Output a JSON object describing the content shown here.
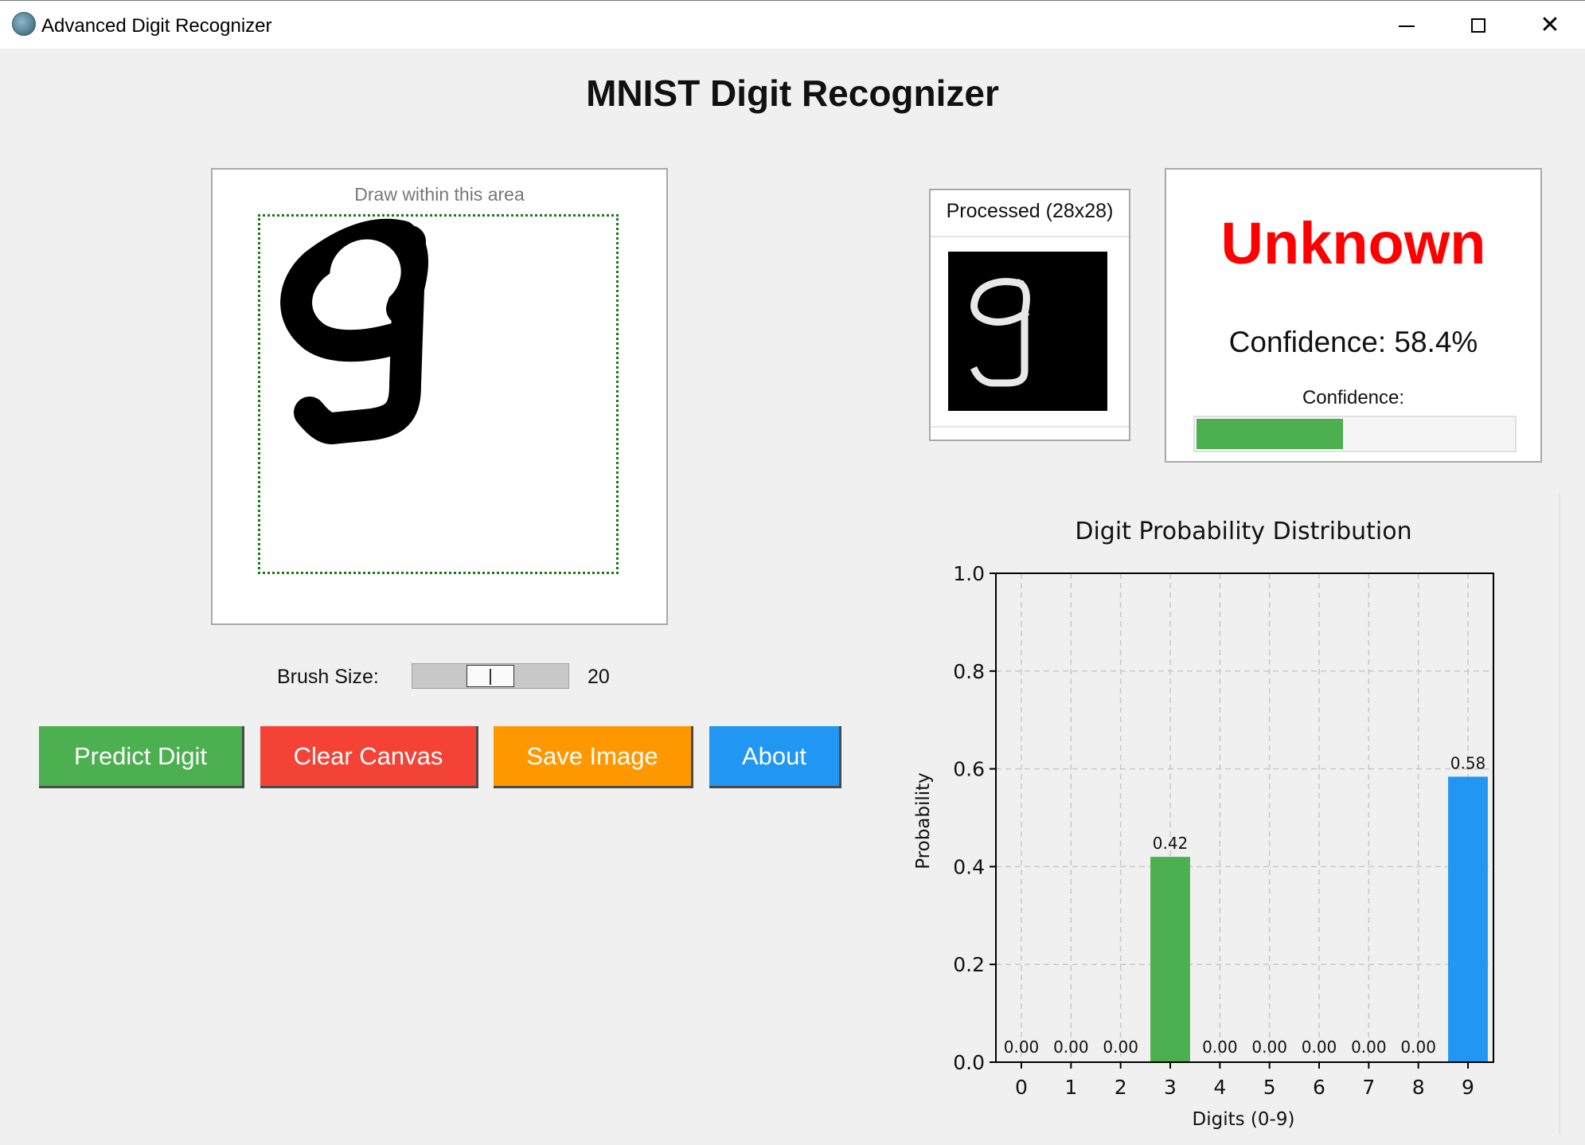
{
  "window": {
    "title": "Advanced Digit Recognizer",
    "icon": "app-logo-icon",
    "controls": {
      "minimize": "minimize-icon",
      "maximize": "maximize-icon",
      "close": "close-icon",
      "close_glyph": "✕"
    }
  },
  "header": {
    "title": "MNIST Digit Recognizer"
  },
  "canvas": {
    "hint": "Draw within this area",
    "drawn_digit": "9"
  },
  "brush": {
    "label": "Brush Size:",
    "value": "20",
    "level": 20
  },
  "buttons": {
    "predict": "Predict Digit",
    "clear": "Clear Canvas",
    "save": "Save Image",
    "about": "About"
  },
  "processed": {
    "title": "Processed (28x28)"
  },
  "result": {
    "label": "Unknown",
    "confidence_text": "Confidence: 58.4%",
    "confidence_label": "Confidence:",
    "confidence_value": 0.584
  },
  "colors": {
    "predict": "#4caf50",
    "clear": "#f44336",
    "save": "#ff9800",
    "about": "#2196f3",
    "result_text": "#ff0000",
    "bar_green": "#4caf50",
    "bar_blue": "#2196f3"
  },
  "chart_data": {
    "type": "bar",
    "title": "Digit Probability Distribution",
    "xlabel": "Digits (0-9)",
    "ylabel": "Probability",
    "categories": [
      "0",
      "1",
      "2",
      "3",
      "4",
      "5",
      "6",
      "7",
      "8",
      "9"
    ],
    "values": [
      0.0,
      0.0,
      0.0,
      0.42,
      0.0,
      0.0,
      0.0,
      0.0,
      0.0,
      0.584
    ],
    "value_labels": [
      "0.00",
      "0.00",
      "0.00",
      "0.42",
      "0.00",
      "0.00",
      "0.00",
      "0.00",
      "0.00",
      "0.58"
    ],
    "bar_colors": [
      "#4caf50",
      "#4caf50",
      "#4caf50",
      "#4caf50",
      "#4caf50",
      "#4caf50",
      "#4caf50",
      "#4caf50",
      "#4caf50",
      "#2196f3"
    ],
    "ylim": [
      0,
      1.0
    ],
    "yticks": [
      "0.0",
      "0.2",
      "0.4",
      "0.6",
      "0.8",
      "1.0"
    ],
    "grid": true
  }
}
